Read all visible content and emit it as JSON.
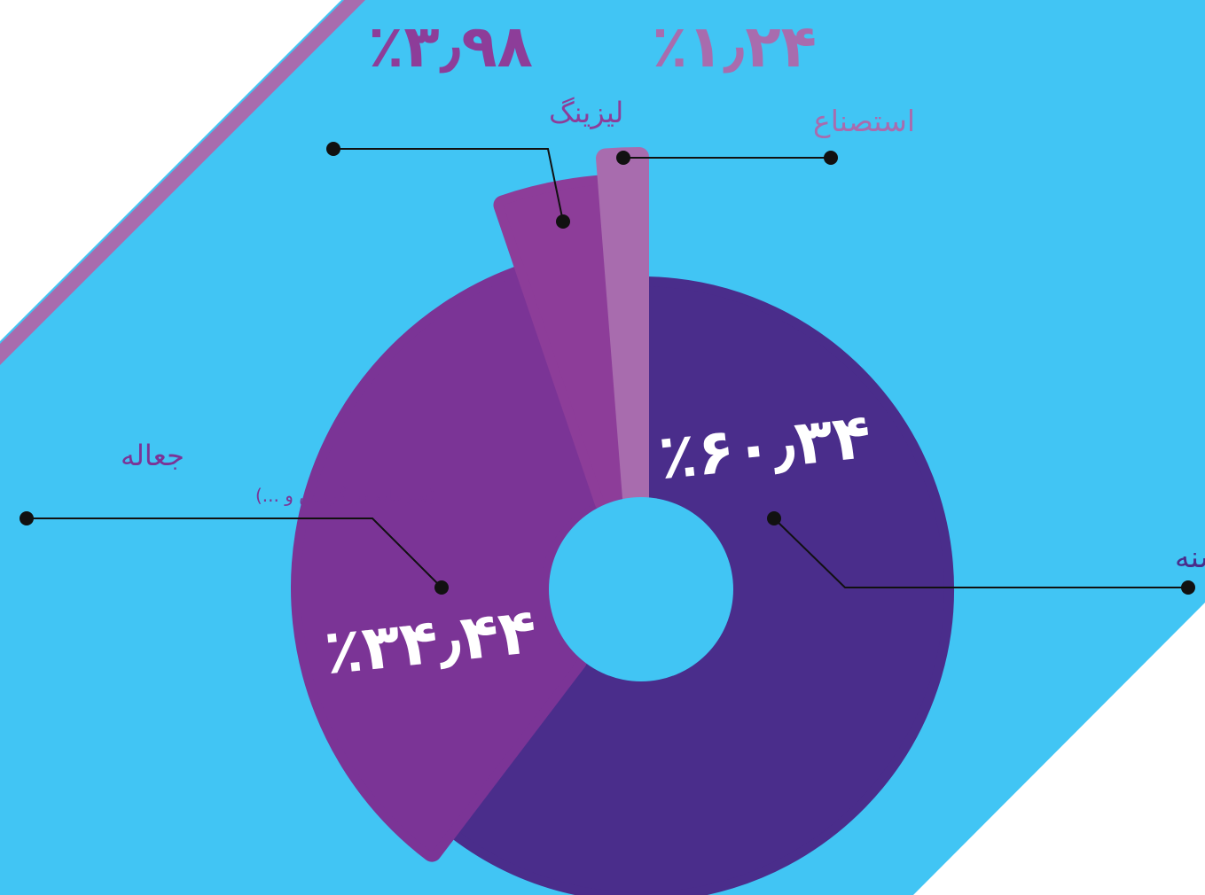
{
  "colors": {
    "background": "#41c5f4",
    "accent_stripe": "#a86cae",
    "connector": "#111111"
  },
  "chart_data": {
    "type": "pie",
    "slices": [
      {
        "key": "qard",
        "name": "قرض الحسنه",
        "value": 60.34,
        "value_label": "٪۶۰٫۳۴",
        "color": "#4a2d8b"
      },
      {
        "key": "joaleh",
        "name": "جعاله",
        "note": "(سرمایه در گردش و ...)",
        "value": 34.44,
        "value_label": "٪۳۴٫۴۴",
        "color": "#7b3496"
      },
      {
        "key": "leasing",
        "name": "لیزینگ",
        "value": 3.98,
        "value_label": "٪۳٫۹۸",
        "color": "#8d3d99"
      },
      {
        "key": "estesna",
        "name": "استصناع",
        "value": 1.24,
        "value_label": "٪۱٫۲۴",
        "color": "#a86cae"
      }
    ]
  }
}
